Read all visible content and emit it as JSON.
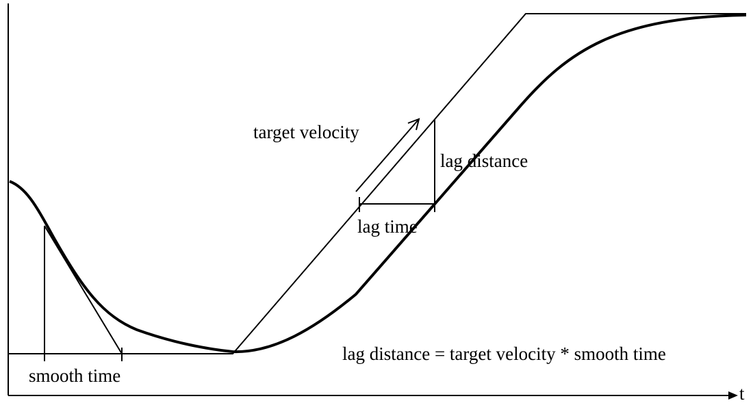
{
  "labels": {
    "target_velocity": "target velocity",
    "lag_distance": "lag distance",
    "lag_time": "lag time",
    "smooth_time": "smooth time",
    "formula": "lag distance = target velocity * smooth time",
    "t_axis": "t"
  }
}
